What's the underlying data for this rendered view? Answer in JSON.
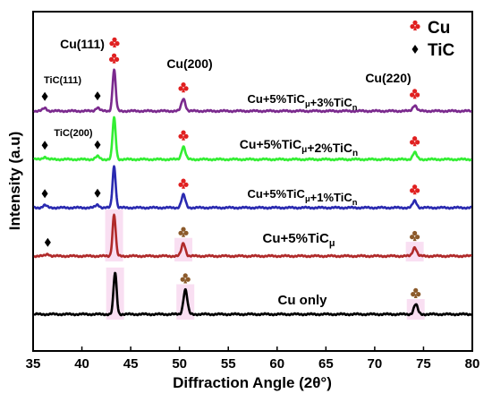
{
  "chart_data": {
    "type": "line",
    "xlabel": "Diffraction Angle (2θ°)",
    "ylabel": "Intensity (a.u)",
    "xlim": [
      35,
      80
    ],
    "x_ticks": [
      35,
      40,
      45,
      50,
      55,
      60,
      65,
      70,
      75,
      80
    ],
    "y_ticks_shown": false,
    "legend": {
      "placement": "top-right",
      "entries": [
        {
          "marker": "club",
          "label": "Cu",
          "color": "#e02020"
        },
        {
          "marker": "diamond",
          "label": "TiC",
          "color": "#000000"
        }
      ]
    },
    "peak_labels": [
      {
        "text": "Cu(111)",
        "x": 43.3
      },
      {
        "text": "Cu(200)",
        "x": 50.4
      },
      {
        "text": "Cu(220)",
        "x": 74.1
      },
      {
        "text": "TiC(111)",
        "x": 36.2
      },
      {
        "text": "TiC(200)",
        "x": 41.6
      }
    ],
    "series": [
      {
        "name": "Cu+5%TiCμ+3%TiCn",
        "label_parts": [
          [
            "Cu+5%TiC",
            ""
          ],
          [
            "μ",
            "sub"
          ],
          [
            "+3%TiC",
            ""
          ],
          [
            "n",
            "sub"
          ]
        ],
        "color": "#7b2a8e",
        "offset": 4,
        "peaks": [
          [
            36.2,
            0.06
          ],
          [
            41.6,
            0.07
          ],
          [
            43.3,
            0.84
          ],
          [
            50.4,
            0.25
          ],
          [
            74.1,
            0.12
          ]
        ],
        "markers": [
          {
            "x": 36.2,
            "type": "diamond"
          },
          {
            "x": 41.6,
            "type": "diamond"
          },
          {
            "x": 43.3,
            "type": "club"
          },
          {
            "x": 50.4,
            "type": "club"
          },
          {
            "x": 74.1,
            "type": "club"
          }
        ]
      },
      {
        "name": "Cu+5%TiCμ+2%TiCn",
        "label_parts": [
          [
            "Cu+5%TiC",
            ""
          ],
          [
            "μ",
            "sub"
          ],
          [
            "+2%TiC",
            ""
          ],
          [
            "n",
            "sub"
          ]
        ],
        "color": "#33ee33",
        "offset": 3,
        "peaks": [
          [
            36.2,
            0.05
          ],
          [
            41.6,
            0.06
          ],
          [
            43.3,
            0.84
          ],
          [
            50.4,
            0.26
          ],
          [
            74.1,
            0.14
          ]
        ],
        "markers": [
          {
            "x": 36.2,
            "type": "diamond"
          },
          {
            "x": 41.6,
            "type": "diamond"
          },
          {
            "x": 50.4,
            "type": "club"
          },
          {
            "x": 74.1,
            "type": "club"
          }
        ]
      },
      {
        "name": "Cu+5%TiCμ+1%TiCn",
        "label_parts": [
          [
            "Cu+5%TiC",
            ""
          ],
          [
            "μ",
            "sub"
          ],
          [
            "+1%TiC",
            ""
          ],
          [
            "n",
            "sub"
          ]
        ],
        "color": "#2a2ab0",
        "offset": 2,
        "peaks": [
          [
            36.2,
            0.05
          ],
          [
            41.6,
            0.06
          ],
          [
            43.3,
            0.84
          ],
          [
            50.4,
            0.26
          ],
          [
            74.1,
            0.14
          ]
        ],
        "markers": [
          {
            "x": 36.2,
            "type": "diamond"
          },
          {
            "x": 41.6,
            "type": "diamond"
          },
          {
            "x": 50.4,
            "type": "club"
          },
          {
            "x": 74.1,
            "type": "club"
          }
        ]
      },
      {
        "name": "Cu+5%TiCμ",
        "label_parts": [
          [
            "Cu+5%TiC",
            ""
          ],
          [
            "μ",
            "sub"
          ]
        ],
        "color": "#b02a2a",
        "offset": 1,
        "highlight": true,
        "peaks": [
          [
            36.5,
            0.04
          ],
          [
            43.3,
            0.84
          ],
          [
            50.4,
            0.26
          ],
          [
            74.1,
            0.18
          ]
        ],
        "markers": [
          {
            "x": 36.5,
            "type": "diamond"
          },
          {
            "x": 50.4,
            "type": "club-brown"
          },
          {
            "x": 74.1,
            "type": "club-brown"
          }
        ]
      },
      {
        "name": "Cu only",
        "label_parts": [
          [
            "Cu only",
            ""
          ]
        ],
        "color": "#000000",
        "offset": 0,
        "highlight": true,
        "peaks": [
          [
            43.4,
            0.84
          ],
          [
            50.6,
            0.5
          ],
          [
            74.2,
            0.2
          ]
        ],
        "markers": [
          {
            "x": 50.6,
            "type": "club-brown"
          },
          {
            "x": 74.2,
            "type": "club-brown"
          }
        ]
      }
    ]
  }
}
